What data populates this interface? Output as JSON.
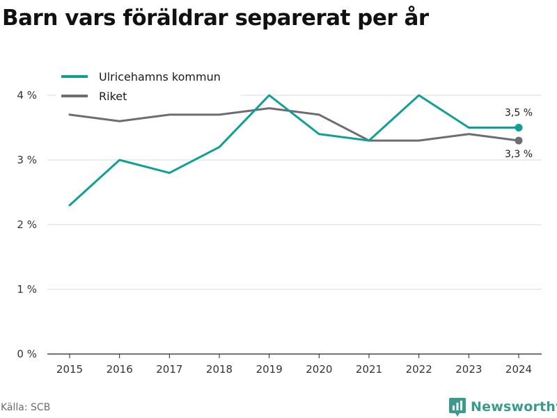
{
  "title": "Barn vars föräldrar separerat per år",
  "source": "Källa: SCB",
  "brand": {
    "name": "Newsworthy",
    "icon": "newsworthy-logo-icon",
    "color": "#3a9a8e"
  },
  "chart_data": {
    "type": "line",
    "title": "Barn vars föräldrar separerat per år",
    "x": [
      2015,
      2016,
      2017,
      2018,
      2019,
      2020,
      2021,
      2022,
      2023,
      2024
    ],
    "x_tick_labels": [
      "2015",
      "2016",
      "2017",
      "2018",
      "2019",
      "2020",
      "2021",
      "2022",
      "2023",
      "2024"
    ],
    "ylim": [
      0,
      4
    ],
    "y_ticks": [
      0,
      1,
      2,
      3,
      4
    ],
    "y_tick_labels": [
      "0 %",
      "1 %",
      "2 %",
      "3 %",
      "4 %"
    ],
    "grid": true,
    "legend_position": "top-left",
    "series": [
      {
        "name": "Ulricehamns kommun",
        "color": "#0fa095",
        "values": [
          2.3,
          3.0,
          2.8,
          3.2,
          4.0,
          3.4,
          3.3,
          4.0,
          3.5,
          3.5
        ],
        "end_label": "3,5 %"
      },
      {
        "name": "Riket",
        "color": "#6e6c72",
        "values": [
          3.7,
          3.6,
          3.7,
          3.7,
          3.8,
          3.7,
          3.3,
          3.3,
          3.4,
          3.3
        ],
        "end_label": "3,3 %"
      }
    ]
  }
}
